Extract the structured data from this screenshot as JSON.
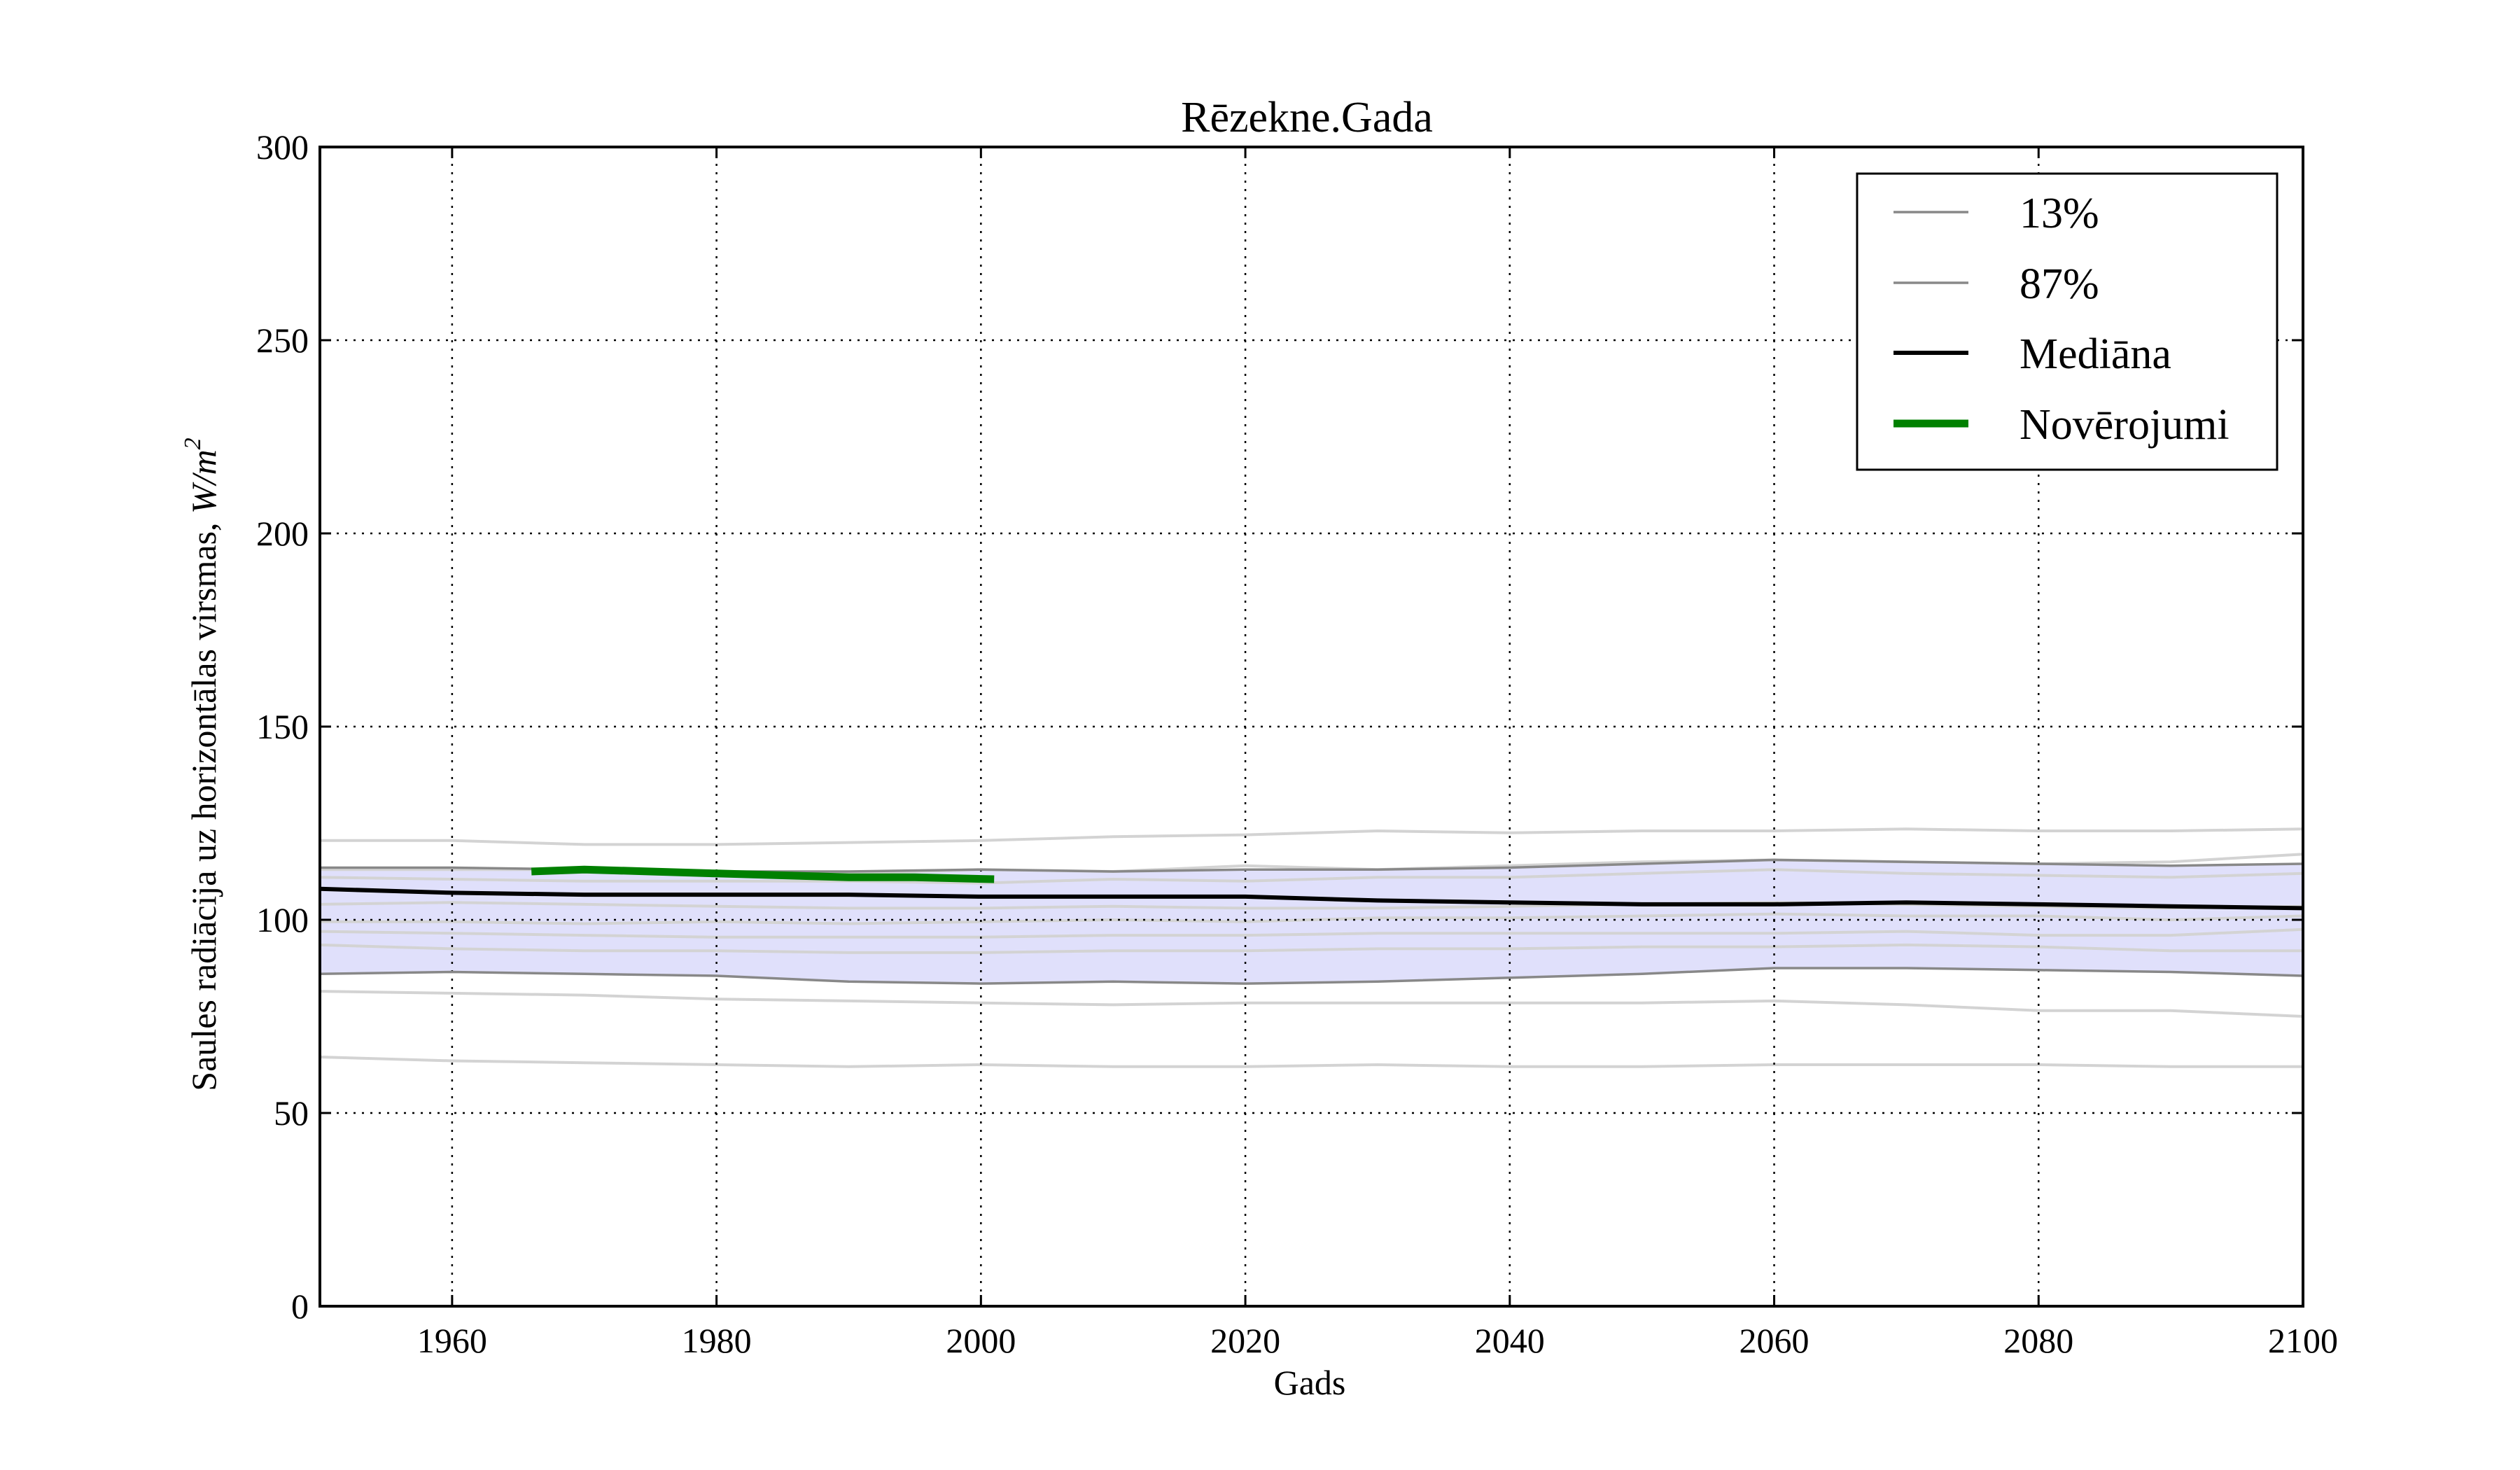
{
  "chart_data": {
    "type": "line",
    "title": "Rēzekne.Gada",
    "xlabel": "Gads",
    "ylabel": "Saules radiācija uz horizontālas virsmas, ",
    "ylabel_unit": "W/m",
    "ylabel_unit_sup": "2",
    "xlim": [
      1950,
      2100
    ],
    "ylim": [
      0,
      300
    ],
    "xticks": [
      1960,
      1980,
      2000,
      2020,
      2040,
      2060,
      2080,
      2100
    ],
    "yticks": [
      0,
      50,
      100,
      150,
      200,
      250,
      300
    ],
    "grid": true,
    "legend_position": "top-right",
    "band": {
      "x": [
        1950,
        1960,
        1970,
        1980,
        1990,
        2000,
        2010,
        2020,
        2030,
        2040,
        2050,
        2060,
        2070,
        2080,
        2090,
        2100
      ],
      "lower": [
        86,
        86.5,
        86,
        85.5,
        84,
        83.5,
        84,
        83.5,
        84,
        85,
        86,
        87.5,
        87.5,
        87,
        86.5,
        85.5
      ],
      "upper": [
        113.5,
        113.5,
        113,
        112.5,
        112.5,
        113,
        112.5,
        113,
        113,
        113.5,
        114.5,
        115.5,
        115,
        114.5,
        114,
        114.5
      ],
      "color": "#e0e0fb"
    },
    "series": [
      {
        "name": "13%",
        "color": "#888888",
        "x": [
          1950,
          1960,
          1970,
          1980,
          1990,
          2000,
          2010,
          2020,
          2030,
          2040,
          2050,
          2060,
          2070,
          2080,
          2090,
          2100
        ],
        "values": [
          86,
          86.5,
          86,
          85.5,
          84,
          83.5,
          84,
          83.5,
          84,
          85,
          86,
          87.5,
          87.5,
          87,
          86.5,
          85.5
        ]
      },
      {
        "name": "87%",
        "color": "#888888",
        "x": [
          1950,
          1960,
          1970,
          1980,
          1990,
          2000,
          2010,
          2020,
          2030,
          2040,
          2050,
          2060,
          2070,
          2080,
          2090,
          2100
        ],
        "values": [
          113.5,
          113.5,
          113,
          112.5,
          112.5,
          113,
          112.5,
          113,
          113,
          113.5,
          114.5,
          115.5,
          115,
          114.5,
          114,
          114.5
        ]
      },
      {
        "name": "Mediāna",
        "color": "#000000",
        "x": [
          1950,
          1960,
          1970,
          1980,
          1990,
          2000,
          2010,
          2020,
          2030,
          2040,
          2050,
          2060,
          2070,
          2080,
          2090,
          2100
        ],
        "values": [
          108,
          107,
          106.5,
          106.5,
          106.5,
          106,
          106,
          106,
          105,
          104.5,
          104,
          104,
          104.5,
          104,
          103.5,
          103
        ]
      },
      {
        "name": "Novērojumi",
        "color": "#008000",
        "x": [
          1966,
          1970,
          1975,
          1980,
          1985,
          1990,
          1995,
          2001
        ],
        "values": [
          112.5,
          113,
          112.5,
          112,
          111.5,
          111,
          111,
          110.5
        ]
      }
    ],
    "ensemble_members": {
      "color": "#d3d3d3",
      "x": [
        1950,
        1960,
        1970,
        1980,
        1990,
        2000,
        2010,
        2020,
        2030,
        2040,
        2050,
        2060,
        2070,
        2080,
        2090,
        2100
      ],
      "series": [
        [
          120.5,
          120.5,
          119.5,
          119.5,
          120,
          120.5,
          121.5,
          122,
          123,
          122.5,
          123,
          123,
          123.5,
          123,
          123,
          123.5
        ],
        [
          113,
          113,
          113,
          112.5,
          112,
          113,
          112.5,
          114,
          113,
          114,
          115,
          115.5,
          115,
          114.5,
          115,
          117
        ],
        [
          111,
          110.5,
          110,
          110,
          110,
          109.5,
          110.5,
          110,
          111,
          111,
          112,
          113,
          112,
          111.5,
          111,
          112
        ],
        [
          104,
          104.5,
          104,
          103.5,
          103,
          103,
          103.5,
          103,
          103,
          103.5,
          104,
          104.5,
          104,
          103.5,
          103,
          103.5
        ],
        [
          99.5,
          99.5,
          99,
          99.5,
          99,
          99.5,
          100,
          99.5,
          100.5,
          100.5,
          101,
          101.5,
          101,
          101,
          100,
          101
        ],
        [
          97,
          96.5,
          96,
          95.5,
          95.5,
          95.5,
          96,
          96,
          96.5,
          96.5,
          96.5,
          96.5,
          97,
          96,
          96,
          97.5
        ],
        [
          93.5,
          92.5,
          92,
          92,
          91.5,
          91.5,
          92,
          92,
          92.5,
          92.5,
          93,
          93,
          93.5,
          93,
          92,
          92
        ],
        [
          81.5,
          81,
          80.5,
          79.5,
          79,
          78.5,
          78,
          78.5,
          78.5,
          78.5,
          78.5,
          79,
          78,
          76.5,
          76.5,
          75
        ],
        [
          64.5,
          63.5,
          63,
          62.5,
          62,
          62.5,
          62,
          62,
          62.5,
          62,
          62,
          62.5,
          62.5,
          62.5,
          62,
          62
        ]
      ]
    }
  }
}
